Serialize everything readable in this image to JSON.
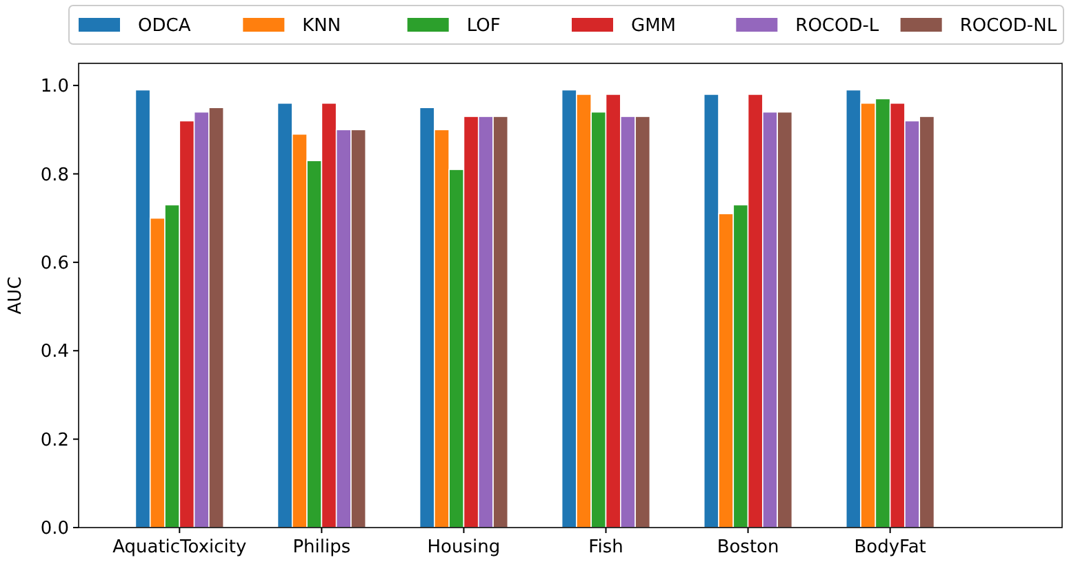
{
  "chart_data": {
    "type": "bar",
    "ylabel": "AUC",
    "categories": [
      "AquaticToxicity",
      "Philips",
      "Housing",
      "Fish",
      "Boston",
      "BodyFat"
    ],
    "series": [
      {
        "name": "ODCA",
        "color": "#1f77b4",
        "values": [
          0.99,
          0.96,
          0.95,
          0.99,
          0.98,
          0.99
        ]
      },
      {
        "name": "KNN",
        "color": "#ff7f0e",
        "values": [
          0.7,
          0.89,
          0.9,
          0.98,
          0.71,
          0.96
        ]
      },
      {
        "name": "LOF",
        "color": "#2ca02c",
        "values": [
          0.73,
          0.83,
          0.81,
          0.94,
          0.73,
          0.97
        ]
      },
      {
        "name": "GMM",
        "color": "#d62728",
        "values": [
          0.92,
          0.96,
          0.93,
          0.98,
          0.98,
          0.96
        ]
      },
      {
        "name": "ROCOD-L",
        "color": "#9467bd",
        "values": [
          0.94,
          0.9,
          0.93,
          0.93,
          0.94,
          0.92
        ]
      },
      {
        "name": "ROCOD-NL",
        "color": "#8c564b",
        "values": [
          0.95,
          0.9,
          0.93,
          0.93,
          0.94,
          0.93
        ]
      }
    ],
    "ylim": [
      0,
      1.05
    ],
    "yticks": [
      {
        "value": 0,
        "label": "0.0"
      },
      {
        "value": 0.2,
        "label": "0.2"
      },
      {
        "value": 0.4,
        "label": "0.4"
      },
      {
        "value": 0.6,
        "label": "0.6"
      },
      {
        "value": 0.8,
        "label": "0.8"
      },
      {
        "value": 1.0,
        "label": "1.0"
      }
    ],
    "legend": "top",
    "grid": false
  }
}
